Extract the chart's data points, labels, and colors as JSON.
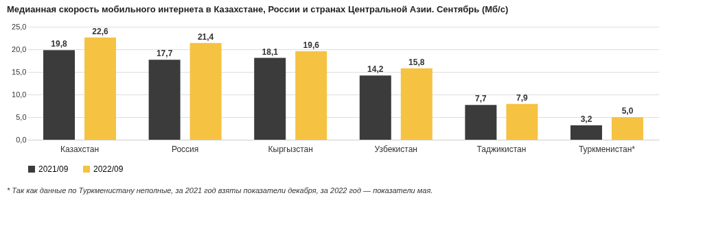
{
  "chart_data": {
    "type": "bar",
    "title": "Медианная скорость мобильного интернета в Казахстане, России и странах Центральной Азии. Сентябрь (Мб/с)",
    "categories": [
      "Казахстан",
      "Россия",
      "Кыргызстан",
      "Узбекистан",
      "Таджикистан",
      "Туркменистан*"
    ],
    "series": [
      {
        "name": "2021/09",
        "color": "#3b3b3b",
        "values": [
          19.8,
          17.7,
          18.1,
          14.2,
          7.7,
          3.2
        ],
        "value_labels": [
          "19,8",
          "17,7",
          "18,1",
          "14,2",
          "7,7",
          "3,2"
        ]
      },
      {
        "name": "2022/09",
        "color": "#f5c242",
        "values": [
          22.6,
          21.4,
          19.6,
          15.8,
          7.9,
          5.0
        ],
        "value_labels": [
          "22,6",
          "21,4",
          "19,6",
          "15,8",
          "7,9",
          "5,0"
        ]
      }
    ],
    "ylim": [
      0,
      25
    ],
    "yticks": [
      {
        "value": 0,
        "label": "0,0"
      },
      {
        "value": 5,
        "label": "5,0"
      },
      {
        "value": 10,
        "label": "10,0"
      },
      {
        "value": 15,
        "label": "15,0"
      },
      {
        "value": 20,
        "label": "20,0"
      },
      {
        "value": 25,
        "label": "25,0"
      }
    ],
    "grid": "y",
    "legend": "bottom",
    "annotations": [
      "* Так как данные по Туркменистану неполные, за 2021 год взяты показатели декабря, за 2022 год — показатели мая."
    ]
  }
}
